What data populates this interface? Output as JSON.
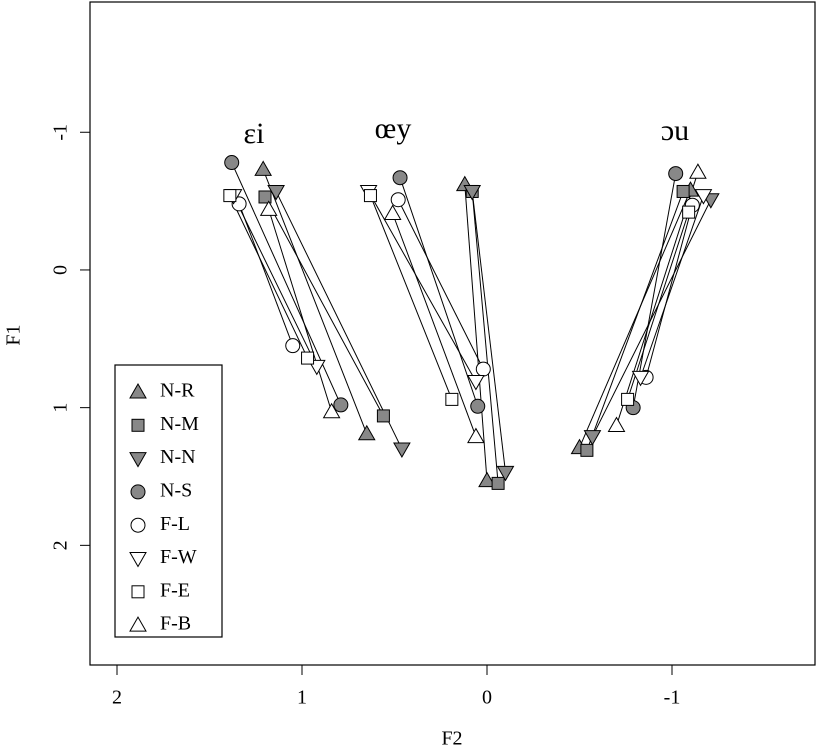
{
  "chart_data": {
    "type": "trajectory",
    "x_label": "F2",
    "y_label": "F1",
    "xlim": [
      2.146,
      -1.773
    ],
    "ylim": [
      2.869,
      -1.946
    ],
    "xticks": [
      2,
      1,
      0,
      -1
    ],
    "yticks": [
      -1,
      0,
      1,
      2
    ],
    "annotations": [
      "εi",
      "œy",
      "ɔu"
    ],
    "series": [
      {
        "name": "N-R",
        "marker": "triangle-up",
        "color": "#888888",
        "x": [
          1.21,
          0.65,
          0.12,
          0.0,
          -1.1,
          -0.5
        ],
        "y": [
          -0.73,
          1.19,
          -0.62,
          1.53,
          -0.58,
          1.29
        ]
      },
      {
        "name": "N-M",
        "marker": "square",
        "color": "#888888",
        "x": [
          1.2,
          0.56,
          0.08,
          -0.06,
          -1.06,
          -0.54
        ],
        "y": [
          -0.53,
          1.06,
          -0.57,
          1.55,
          -0.57,
          1.31
        ]
      },
      {
        "name": "N-N",
        "marker": "triangle-down",
        "color": "#888888",
        "x": [
          1.14,
          0.46,
          0.08,
          -0.1,
          -1.21,
          -0.57
        ],
        "y": [
          -0.57,
          1.3,
          -0.57,
          1.47,
          -0.51,
          1.21
        ]
      },
      {
        "name": "N-S",
        "marker": "circle",
        "color": "#888888",
        "x": [
          1.38,
          0.79,
          0.47,
          0.05,
          -1.02,
          -0.79
        ],
        "y": [
          -0.78,
          0.98,
          -0.67,
          0.99,
          -0.7,
          1.0
        ]
      },
      {
        "name": "F-L",
        "marker": "circle",
        "color": "#ffffff",
        "x": [
          1.34,
          1.05,
          0.48,
          0.02,
          -1.11,
          -0.86
        ],
        "y": [
          -0.48,
          0.55,
          -0.51,
          0.72,
          -0.47,
          0.78
        ]
      },
      {
        "name": "F-W",
        "marker": "triangle-down",
        "color": "#ffffff",
        "x": [
          1.37,
          0.92,
          0.64,
          0.06,
          -1.17,
          -0.83
        ],
        "y": [
          -0.54,
          0.7,
          -0.57,
          0.81,
          -0.54,
          0.78
        ]
      },
      {
        "name": "F-E",
        "marker": "square",
        "color": "#ffffff",
        "x": [
          1.39,
          0.97,
          0.63,
          0.19,
          -1.09,
          -0.76
        ],
        "y": [
          -0.54,
          0.64,
          -0.54,
          0.94,
          -0.42,
          0.94
        ]
      },
      {
        "name": "F-B",
        "marker": "triangle-up",
        "color": "#ffffff",
        "x": [
          1.18,
          0.84,
          0.51,
          0.06,
          -1.14,
          -0.7
        ],
        "y": [
          -0.44,
          1.03,
          -0.41,
          1.21,
          -0.71,
          1.13
        ]
      }
    ]
  }
}
